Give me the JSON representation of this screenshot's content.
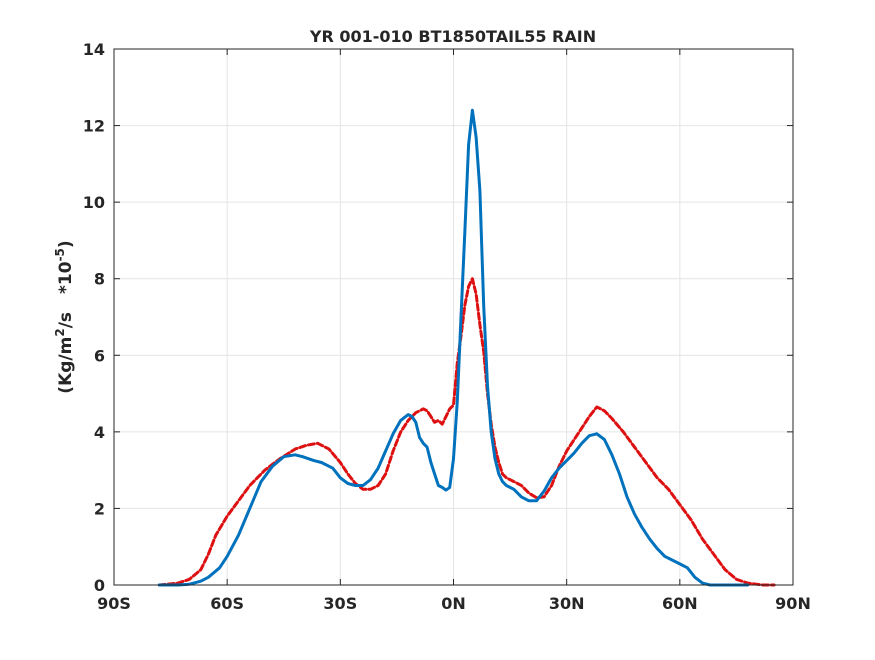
{
  "chart_data": {
    "type": "line",
    "title": "YR 001-010 BT1850TAIL55 RAIN",
    "xlabel": "",
    "ylabel": {
      "unit_prefix": "(Kg/m",
      "unit_exp": "2",
      "unit_suffix": "/s",
      "scale_prefix": "*10",
      "scale_exp": "-5",
      "scale_suffix": ")"
    },
    "xlim": [
      -90,
      90
    ],
    "ylim": [
      0,
      14
    ],
    "x_ticks": [
      {
        "value": -90,
        "label": "90S"
      },
      {
        "value": -60,
        "label": "60S"
      },
      {
        "value": -30,
        "label": "30S"
      },
      {
        "value": 0,
        "label": "0N"
      },
      {
        "value": 30,
        "label": "30N"
      },
      {
        "value": 60,
        "label": "60N"
      },
      {
        "value": 90,
        "label": "90N"
      }
    ],
    "y_ticks": [
      {
        "value": 0,
        "label": "0"
      },
      {
        "value": 2,
        "label": "2"
      },
      {
        "value": 4,
        "label": "4"
      },
      {
        "value": 6,
        "label": "6"
      },
      {
        "value": 8,
        "label": "8"
      },
      {
        "value": 10,
        "label": "10"
      },
      {
        "value": 12,
        "label": "12"
      },
      {
        "value": 14,
        "label": "14"
      }
    ],
    "grid": true,
    "series": [
      {
        "color": "#dd1111",
        "style": "dashed",
        "x": [
          -78,
          -73,
          -70,
          -67,
          -65,
          -63,
          -60,
          -57,
          -54,
          -50,
          -46,
          -42,
          -39,
          -36,
          -33,
          -30,
          -28,
          -26,
          -24,
          -22,
          -20,
          -18,
          -16,
          -14,
          -12,
          -10,
          -8,
          -7,
          -6,
          -5,
          -4,
          -3,
          -2,
          -1,
          0,
          1,
          2,
          3,
          4,
          5,
          6,
          7,
          8,
          9,
          10,
          11,
          12,
          13,
          14,
          15,
          16,
          18,
          20,
          22,
          24,
          26,
          28,
          30,
          32,
          34,
          36,
          38,
          40,
          42,
          45,
          48,
          51,
          54,
          57,
          60,
          63,
          66,
          69,
          72,
          75,
          78,
          82,
          85
        ],
        "y": [
          0.0,
          0.05,
          0.15,
          0.4,
          0.8,
          1.3,
          1.8,
          2.2,
          2.6,
          3.0,
          3.3,
          3.55,
          3.65,
          3.7,
          3.55,
          3.2,
          2.9,
          2.65,
          2.5,
          2.5,
          2.6,
          2.9,
          3.5,
          4.0,
          4.3,
          4.5,
          4.6,
          4.55,
          4.4,
          4.25,
          4.3,
          4.2,
          4.4,
          4.6,
          4.7,
          5.8,
          6.5,
          7.3,
          7.8,
          8.0,
          7.6,
          6.8,
          6.1,
          5.0,
          4.2,
          3.6,
          3.2,
          2.9,
          2.8,
          2.75,
          2.7,
          2.6,
          2.4,
          2.28,
          2.3,
          2.6,
          3.1,
          3.5,
          3.8,
          4.1,
          4.4,
          4.65,
          4.55,
          4.35,
          4.0,
          3.6,
          3.2,
          2.8,
          2.5,
          2.1,
          1.7,
          1.2,
          0.8,
          0.4,
          0.15,
          0.05,
          0.0,
          0.0
        ]
      },
      {
        "color": "#0072bd",
        "style": "solid",
        "x": [
          -78,
          -73,
          -70,
          -67,
          -65,
          -62,
          -60,
          -57,
          -54,
          -51,
          -48,
          -45,
          -42,
          -40,
          -37,
          -35,
          -32,
          -30,
          -28,
          -26,
          -24,
          -22,
          -20,
          -18,
          -16,
          -14,
          -12,
          -11,
          -10,
          -9,
          -8,
          -7,
          -6,
          -5,
          -4,
          -3,
          -2,
          -1,
          0,
          1,
          2,
          3,
          4,
          5,
          6,
          7,
          8,
          9,
          10,
          11,
          12,
          13,
          14,
          15,
          16,
          18,
          20,
          22,
          24,
          26,
          28,
          30,
          32,
          34,
          36,
          38,
          40,
          42,
          44,
          46,
          48,
          50,
          52,
          54,
          56,
          58,
          60,
          62,
          64,
          66,
          68,
          70,
          72,
          75,
          78
        ],
        "y": [
          0.0,
          0.0,
          0.02,
          0.1,
          0.2,
          0.45,
          0.75,
          1.3,
          2.0,
          2.7,
          3.1,
          3.35,
          3.4,
          3.35,
          3.25,
          3.2,
          3.05,
          2.8,
          2.65,
          2.6,
          2.6,
          2.75,
          3.05,
          3.5,
          3.95,
          4.3,
          4.45,
          4.4,
          4.25,
          3.85,
          3.7,
          3.6,
          3.2,
          2.9,
          2.6,
          2.55,
          2.48,
          2.55,
          3.3,
          4.8,
          7.0,
          9.2,
          11.5,
          12.4,
          11.7,
          10.3,
          7.3,
          5.2,
          4.0,
          3.3,
          2.9,
          2.7,
          2.6,
          2.55,
          2.5,
          2.3,
          2.2,
          2.2,
          2.45,
          2.8,
          3.05,
          3.25,
          3.45,
          3.7,
          3.9,
          3.95,
          3.8,
          3.4,
          2.9,
          2.3,
          1.85,
          1.5,
          1.2,
          0.95,
          0.75,
          0.65,
          0.55,
          0.45,
          0.2,
          0.05,
          0.0,
          0.0,
          0.0,
          0.0,
          0.0
        ]
      }
    ]
  }
}
